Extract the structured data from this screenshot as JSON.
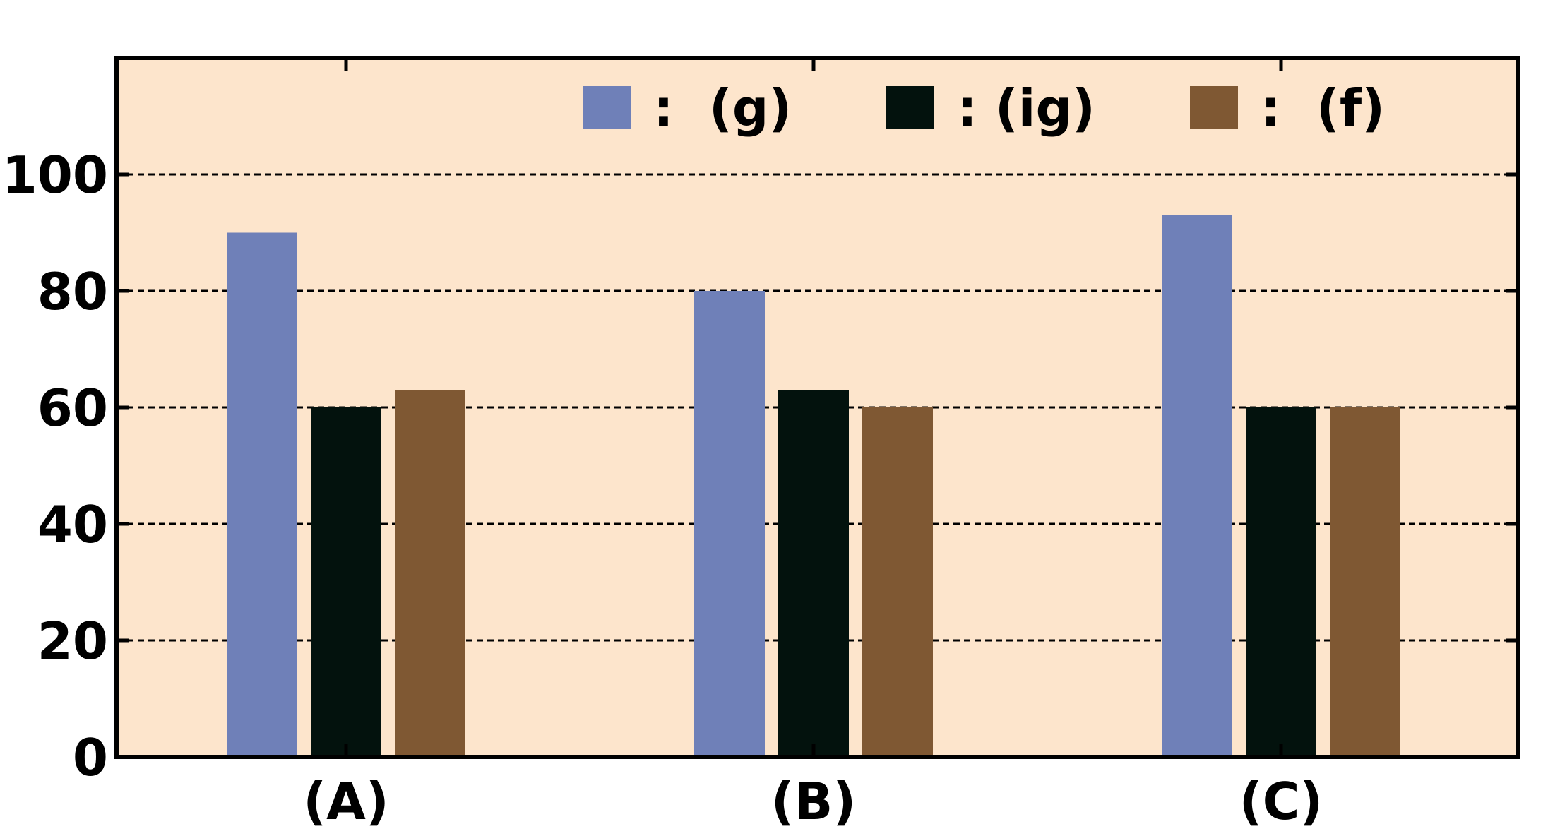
{
  "chart_data": {
    "type": "bar",
    "categories": [
      "(A)",
      "(B)",
      "(C)"
    ],
    "series": [
      {
        "name": ":  (g)",
        "color": "#6f80b8",
        "values": [
          90,
          80,
          93
        ]
      },
      {
        "name": ": (ig)",
        "color": "#03120d",
        "values": [
          60,
          63,
          60
        ]
      },
      {
        "name": ":  (f)",
        "color": "#7f5833",
        "values": [
          63,
          60,
          60
        ]
      }
    ],
    "title": "",
    "xlabel": "",
    "ylabel": "",
    "ylim": [
      0,
      100
    ],
    "yticks": [
      0,
      20,
      40,
      60,
      80,
      100
    ],
    "grid": true,
    "legend_position": "top",
    "background_color": "#fde5cc"
  }
}
